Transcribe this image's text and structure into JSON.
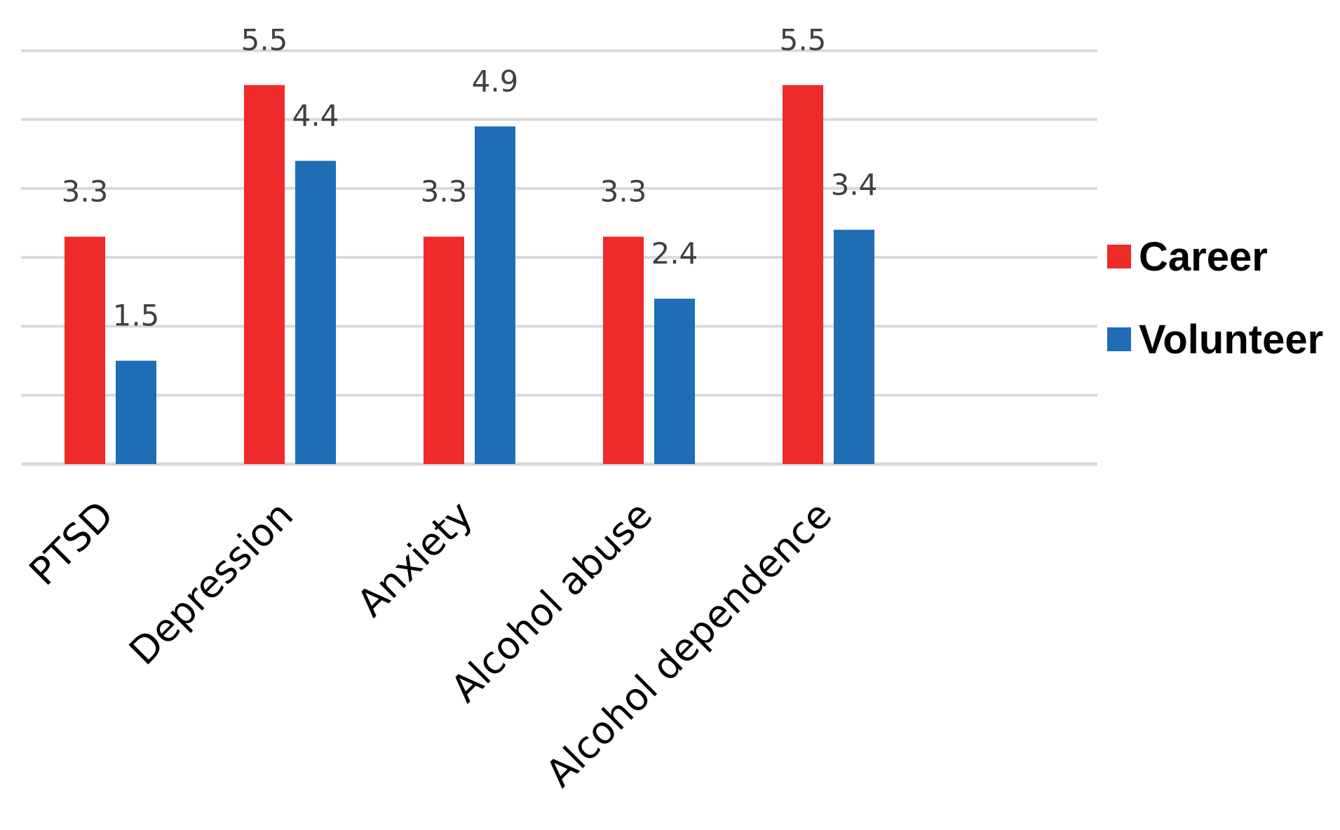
{
  "chart_data": {
    "type": "bar",
    "categories": [
      "PTSD",
      "Depression",
      "Anxiety",
      "Alcohol abuse",
      "Alcohol dependence"
    ],
    "series": [
      {
        "name": "Career",
        "values": [
          3.3,
          5.5,
          3.3,
          3.3,
          5.5
        ],
        "color": "#ee2a2a"
      },
      {
        "name": "Volunteer",
        "values": [
          1.5,
          4.4,
          4.9,
          2.4,
          3.4
        ],
        "color": "#1f6db5"
      }
    ],
    "ylim": [
      0,
      6
    ],
    "grid": true,
    "data_labels": true,
    "legend_position": "right",
    "title": "",
    "xlabel": "",
    "ylabel": ""
  }
}
